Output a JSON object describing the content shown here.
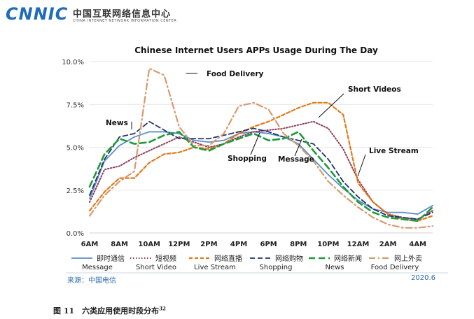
{
  "header": {
    "logo_text": "CNNIC",
    "org_name_cn": "中国互联网络信息中心",
    "org_name_en": "CHINA INTERNET NETWORK INFORMATION CENTER"
  },
  "footer": {
    "source": "来源：中国电信",
    "date": "2020.6",
    "caption": "图 11　六类应用使用时段分布",
    "caption_note": "32"
  },
  "chart_data": {
    "type": "line",
    "title": "Chinese Internet Users APPs Usage During The Day",
    "xlabel": "",
    "ylabel": "",
    "ylim": [
      0,
      10
    ],
    "y_ticks": [
      "0.0%",
      "2.5%",
      "5.0%",
      "7.5%",
      "10.0%"
    ],
    "x_tick_labels": [
      "6AM",
      "8AM",
      "10AM",
      "12PM",
      "2PM",
      "4PM",
      "6PM",
      "8PM",
      "10PM",
      "12AM",
      "2AM",
      "4AM"
    ],
    "x_range": [
      0,
      23
    ],
    "annotations": [
      "Food Delivery",
      "Short Videos",
      "News",
      "Live Stream",
      "Shopping",
      "Message"
    ],
    "series": [
      {
        "name": "即时通信",
        "name_en": "Message",
        "color": "#5b8fc9",
        "dash": "solid",
        "values": [
          2.0,
          4.2,
          5.1,
          5.6,
          5.9,
          5.9,
          5.8,
          5.4,
          5.3,
          5.4,
          5.8,
          5.9,
          5.8,
          5.6,
          5.2,
          4.3,
          3.4,
          2.6,
          1.9,
          1.4,
          1.2,
          1.2,
          1.1,
          1.6
        ]
      },
      {
        "name": "短视频",
        "name_en": "Short Video",
        "color": "#8e3a5c",
        "dash": "dotted",
        "values": [
          1.8,
          3.7,
          3.9,
          4.4,
          4.8,
          5.2,
          5.6,
          5.3,
          5.0,
          5.2,
          5.6,
          5.9,
          6.0,
          6.1,
          6.3,
          6.5,
          6.1,
          4.9,
          3.1,
          1.8,
          1.1,
          0.9,
          0.8,
          1.3
        ]
      },
      {
        "name": "网络直播",
        "name_en": "Live Stream",
        "color": "#e07b1c",
        "dash": "dashed",
        "values": [
          1.3,
          2.4,
          3.2,
          3.2,
          4.1,
          4.6,
          4.7,
          5.0,
          4.9,
          5.2,
          5.8,
          6.2,
          6.5,
          6.9,
          7.3,
          7.6,
          7.6,
          6.9,
          2.9,
          1.8,
          1.1,
          0.8,
          0.7,
          1.0
        ]
      },
      {
        "name": "网络购物",
        "name_en": "Shopping",
        "color": "#1f3566",
        "dash": "long-dash",
        "values": [
          2.2,
          4.3,
          5.6,
          5.8,
          6.5,
          6.0,
          5.5,
          5.5,
          5.5,
          5.7,
          5.9,
          6.1,
          5.9,
          5.6,
          5.4,
          5.2,
          4.3,
          3.0,
          2.1,
          1.4,
          1.0,
          0.9,
          0.8,
          1.2
        ]
      },
      {
        "name": "网络新闻",
        "name_en": "News",
        "color": "#1e9a3c",
        "dash": "long-dash-thick",
        "values": [
          2.7,
          4.6,
          5.5,
          5.2,
          5.3,
          5.7,
          5.9,
          5.0,
          4.8,
          5.2,
          5.5,
          5.8,
          5.4,
          5.5,
          5.9,
          4.8,
          3.8,
          2.7,
          1.8,
          1.2,
          0.9,
          0.8,
          0.7,
          1.5
        ]
      },
      {
        "name": "网上外卖",
        "name_en": "Food Delivery",
        "color": "#d79a6e",
        "dash": "dash-dot",
        "values": [
          1.0,
          2.2,
          3.0,
          3.6,
          9.6,
          9.2,
          6.2,
          5.1,
          5.1,
          5.8,
          7.4,
          7.6,
          7.2,
          5.8,
          5.1,
          4.2,
          3.0,
          2.2,
          1.5,
          0.9,
          0.5,
          0.3,
          0.3,
          0.4
        ]
      }
    ]
  }
}
